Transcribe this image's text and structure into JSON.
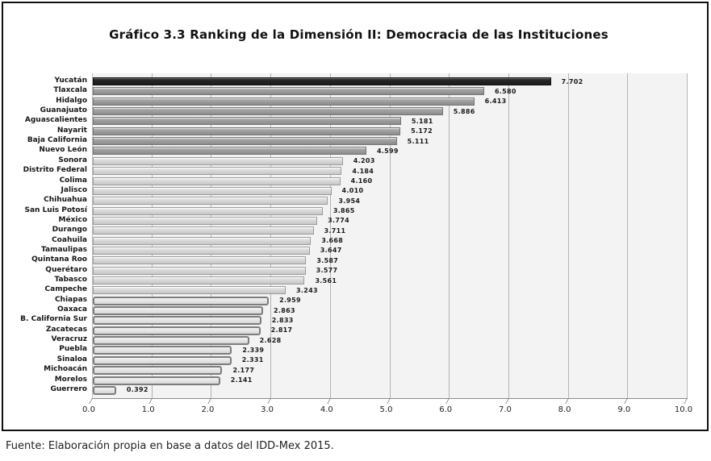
{
  "title": "Gráfico 3.3 Ranking de la Dimensión II: Democracia de las Instituciones",
  "source": "Fuente: Elaboración propia en base a datos del IDD-Mex 2015.",
  "chart_data": {
    "type": "bar",
    "orientation": "horizontal",
    "title": "Gráfico 3.3 Ranking de la Dimensión II: Democracia de las Instituciones",
    "xlabel": "",
    "ylabel": "",
    "xlim": [
      0,
      10
    ],
    "grid": true,
    "x_ticks": [
      "0.0",
      "1.0",
      "2.0",
      "3.0",
      "4.0",
      "5.0",
      "6.0",
      "7.0",
      "8.0",
      "9.0",
      "10.0"
    ],
    "tier_colors": {
      "dark": "#262626",
      "medium": "#999999",
      "light": "#d6d6d6",
      "outlined": "#e6e6e6"
    },
    "plot_bg": "#f3f3f3",
    "states": [
      {
        "name": "Yucatán",
        "value": "7.702",
        "tier": "dark"
      },
      {
        "name": "Tlaxcala",
        "value": "6.580",
        "tier": "medium"
      },
      {
        "name": "Hidalgo",
        "value": "6.413",
        "tier": "medium"
      },
      {
        "name": "Guanajuato",
        "value": "5.886",
        "tier": "medium"
      },
      {
        "name": "Aguascalientes",
        "value": "5.181",
        "tier": "medium"
      },
      {
        "name": "Nayarit",
        "value": "5.172",
        "tier": "medium"
      },
      {
        "name": "Baja California",
        "value": "5.111",
        "tier": "medium"
      },
      {
        "name": "Nuevo León",
        "value": "4.599",
        "tier": "medium"
      },
      {
        "name": "Sonora",
        "value": "4.203",
        "tier": "light"
      },
      {
        "name": "Distrito Federal",
        "value": "4.184",
        "tier": "light"
      },
      {
        "name": "Colima",
        "value": "4.160",
        "tier": "light"
      },
      {
        "name": "Jalisco",
        "value": "4.010",
        "tier": "light"
      },
      {
        "name": "Chihuahua",
        "value": "3.954",
        "tier": "light"
      },
      {
        "name": "San Luis Potosí",
        "value": "3.865",
        "tier": "light"
      },
      {
        "name": "México",
        "value": "3.774",
        "tier": "light"
      },
      {
        "name": "Durango",
        "value": "3.711",
        "tier": "light"
      },
      {
        "name": "Coahuila",
        "value": "3.668",
        "tier": "light"
      },
      {
        "name": "Tamaulipas",
        "value": "3.647",
        "tier": "light"
      },
      {
        "name": "Quintana Roo",
        "value": "3.587",
        "tier": "light"
      },
      {
        "name": "Querétaro",
        "value": "3.577",
        "tier": "light"
      },
      {
        "name": "Tabasco",
        "value": "3.561",
        "tier": "light"
      },
      {
        "name": "Campeche",
        "value": "3.243",
        "tier": "light"
      },
      {
        "name": "Chiapas",
        "value": "2.959",
        "tier": "outlined"
      },
      {
        "name": "Oaxaca",
        "value": "2.863",
        "tier": "outlined"
      },
      {
        "name": "B. California Sur",
        "value": "2.833",
        "tier": "outlined"
      },
      {
        "name": "Zacatecas",
        "value": "2.817",
        "tier": "outlined"
      },
      {
        "name": "Veracruz",
        "value": "2.628",
        "tier": "outlined"
      },
      {
        "name": "Puebla",
        "value": "2.339",
        "tier": "outlined"
      },
      {
        "name": "Sinaloa",
        "value": "2.331",
        "tier": "outlined"
      },
      {
        "name": "Michoacán",
        "value": "2.177",
        "tier": "outlined"
      },
      {
        "name": "Morelos",
        "value": "2.141",
        "tier": "outlined"
      },
      {
        "name": "Guerrero",
        "value": "0.392",
        "tier": "outlined"
      }
    ]
  }
}
